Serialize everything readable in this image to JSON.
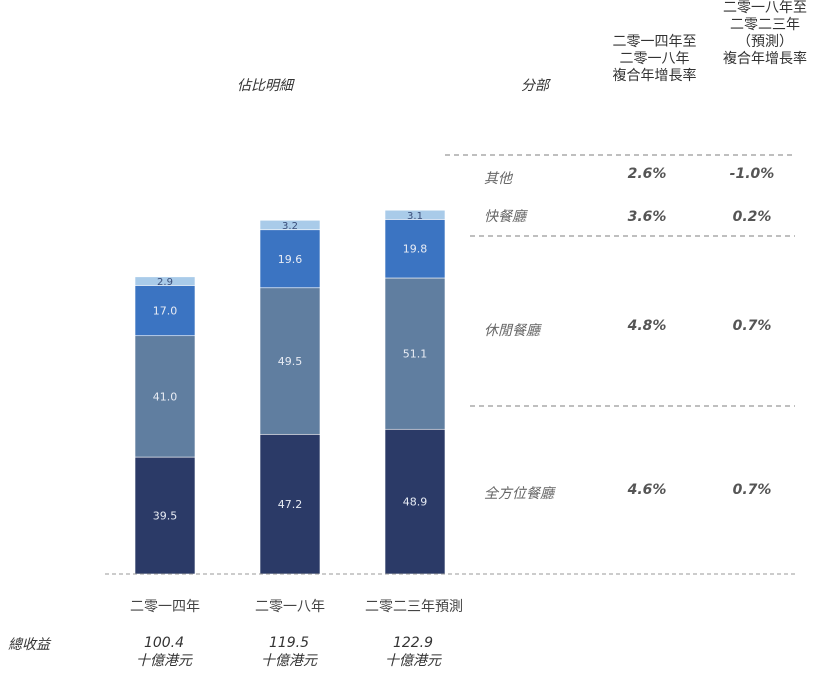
{
  "headers": {
    "breakdown": "佔比明細",
    "segment": "分部",
    "cagr_hist": "二零一四年至\n二零一八年\n複合年增長率",
    "cagr_fore": "二零一八年至\n二零二三年\n（預測）\n複合年增長率"
  },
  "segments": [
    {
      "name": "其他",
      "cagr_hist": "2.6%",
      "cagr_fore": "-1.0%"
    },
    {
      "name": "快餐廳",
      "cagr_hist": "3.6%",
      "cagr_fore": "0.2%"
    },
    {
      "name": "休閒餐廳",
      "cagr_hist": "4.8%",
      "cagr_fore": "0.7%"
    },
    {
      "name": "全方位餐廳",
      "cagr_hist": "4.6%",
      "cagr_fore": "0.7%"
    }
  ],
  "totals": {
    "label": "總收益",
    "items": [
      {
        "value": "100.4",
        "unit": "十億港元"
      },
      {
        "value": "119.5",
        "unit": "十億港元"
      },
      {
        "value": "122.9",
        "unit": "十億港元"
      }
    ]
  },
  "colors": {
    "full_service": "#2b3a67",
    "casual": "#607ea0",
    "quick_service": "#3b74c2",
    "others": "#a9cbe9"
  },
  "chart_data": {
    "type": "bar",
    "stacked": true,
    "categories": [
      "二零一四年",
      "二零一八年",
      "二零二三年預測"
    ],
    "series": [
      {
        "name": "全方位餐廳",
        "values": [
          39.5,
          47.2,
          48.9
        ],
        "labels": [
          "39.5",
          "47.2",
          "48.9"
        ]
      },
      {
        "name": "休閒餐廳",
        "values": [
          41.0,
          49.5,
          51.1
        ],
        "labels": [
          "41.0",
          "49.5",
          "51.1"
        ]
      },
      {
        "name": "快餐廳",
        "values": [
          17.0,
          19.6,
          19.8
        ],
        "labels": [
          "17.0",
          "19.6",
          "19.8"
        ]
      },
      {
        "name": "其他",
        "values": [
          2.9,
          3.2,
          3.1
        ],
        "labels": [
          "2.9",
          "3.2",
          "3.1"
        ]
      }
    ],
    "ylim": [
      0,
      135
    ]
  }
}
